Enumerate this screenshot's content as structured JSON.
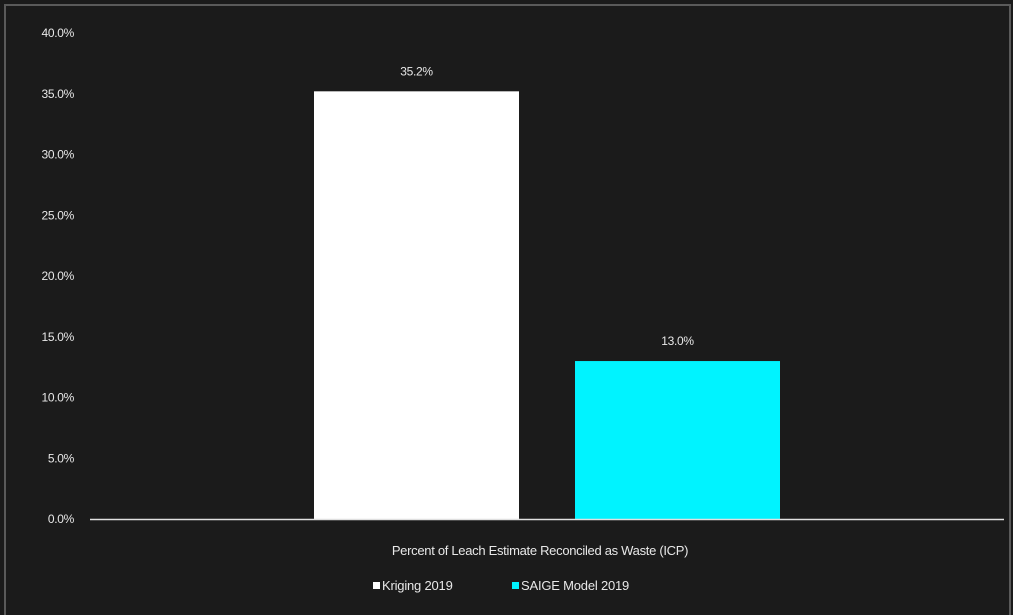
{
  "chart_data": {
    "type": "bar",
    "categories": [
      "Percent of Leach Estimate Reconciled as Waste (ICP)"
    ],
    "series": [
      {
        "name": "Kriging 2019",
        "values": [
          35.2
        ],
        "color": "#ffffff",
        "label": "35.2%"
      },
      {
        "name": "SAIGE Model 2019",
        "values": [
          13.0
        ],
        "color": "#00f3ff",
        "label": "13.0%"
      }
    ],
    "ylim": [
      0,
      40
    ],
    "yticks": [
      0,
      5,
      10,
      15,
      20,
      25,
      30,
      35,
      40
    ],
    "ytick_labels": [
      "0.0%",
      "5.0%",
      "10.0%",
      "15.0%",
      "20.0%",
      "25.0%",
      "30.0%",
      "35.0%",
      "40.0%"
    ],
    "grid": false,
    "legend_position": "bottom",
    "background": "#1b1b1b",
    "axis_color": "#e0e0e0"
  }
}
